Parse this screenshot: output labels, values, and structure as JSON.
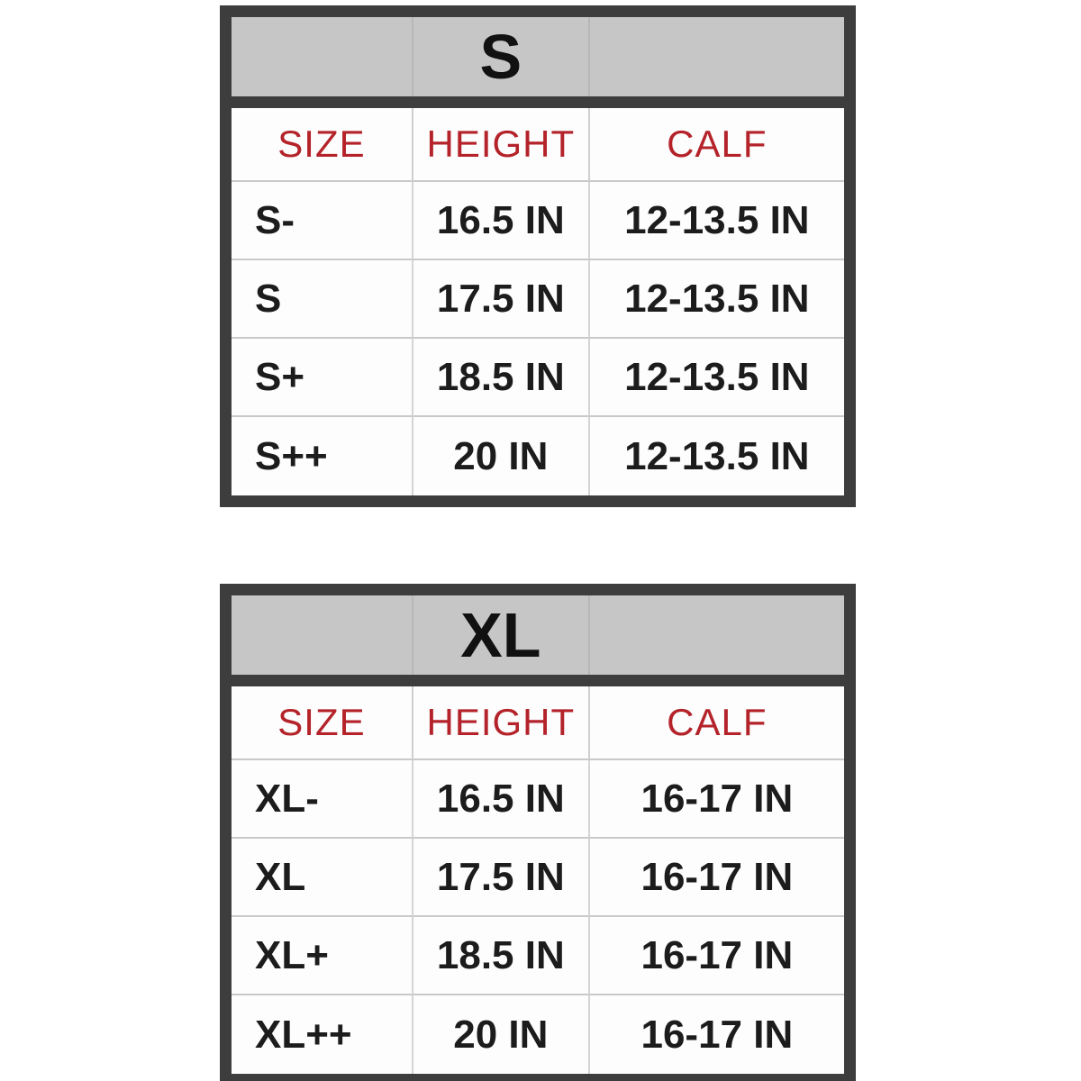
{
  "colors": {
    "outer_border": "#3d3d3d",
    "title_band_bg": "#c6c6c6",
    "column_header_text": "#b4232a",
    "body_text": "#1c1c1c",
    "grid_line": "#c9c9c9",
    "background": "#ffffff"
  },
  "chart_data": [
    {
      "type": "table",
      "title": "S",
      "columns": [
        "SIZE",
        "HEIGHT",
        "CALF"
      ],
      "rows": [
        [
          "S-",
          "16.5 IN",
          "12-13.5 IN"
        ],
        [
          "S",
          "17.5 IN",
          "12-13.5 IN"
        ],
        [
          "S+",
          "18.5 IN",
          "12-13.5 IN"
        ],
        [
          "S++",
          "20 IN",
          "12-13.5 IN"
        ]
      ]
    },
    {
      "type": "table",
      "title": "XL",
      "columns": [
        "SIZE",
        "HEIGHT",
        "CALF"
      ],
      "rows": [
        [
          "XL-",
          "16.5 IN",
          "16-17 IN"
        ],
        [
          "XL",
          "17.5 IN",
          "16-17 IN"
        ],
        [
          "XL+",
          "18.5 IN",
          "16-17 IN"
        ],
        [
          "XL++",
          "20 IN",
          "16-17 IN"
        ]
      ]
    }
  ]
}
